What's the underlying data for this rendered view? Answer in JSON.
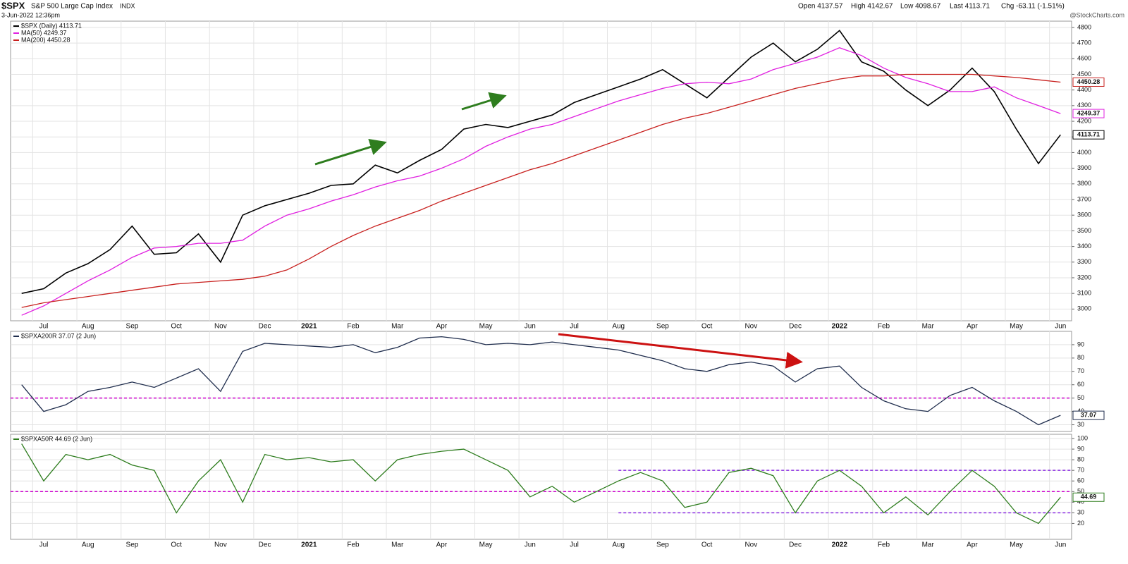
{
  "header": {
    "symbol": "$SPX",
    "name": "S&P 500 Large Cap Index",
    "exchange": "INDX",
    "timestamp": "3-Jun-2022 12:36pm",
    "open": "Open 4137.57",
    "high": "High 4142.67",
    "low": "Low 4098.67",
    "last": "Last 4113.71",
    "change": "Chg -63.11 (-1.51%)",
    "source": "@StockCharts.com"
  },
  "chart_data": [
    {
      "type": "line",
      "categories": [
        null,
        "Jul",
        null,
        "Aug",
        null,
        "Sep",
        null,
        "Oct",
        null,
        "Nov",
        null,
        "Dec",
        null,
        "2021",
        null,
        "Feb",
        null,
        "Mar",
        null,
        "Apr",
        null,
        "May",
        null,
        "Jun",
        null,
        "Jul",
        null,
        "Aug",
        null,
        "Sep",
        null,
        "Oct",
        null,
        "Nov",
        null,
        "Dec",
        null,
        "2022",
        null,
        "Feb",
        null,
        "Mar",
        null,
        "Apr",
        null,
        "May",
        null,
        "Jun"
      ],
      "series": [
        {
          "name": "$SPX (Daily) 4113.71",
          "color": "#000000",
          "values": [
            3100,
            3130,
            3230,
            3290,
            3380,
            3530,
            3350,
            3360,
            3480,
            3300,
            3600,
            3660,
            3700,
            3740,
            3790,
            3800,
            3920,
            3870,
            3950,
            4020,
            4150,
            4180,
            4160,
            4200,
            4240,
            4320,
            4370,
            4420,
            4470,
            4530,
            4440,
            4350,
            4480,
            4610,
            4700,
            4580,
            4660,
            4780,
            4580,
            4520,
            4400,
            4300,
            4400,
            4540,
            4390,
            4150,
            3930,
            4113.71
          ]
        },
        {
          "name": "MA(50) 4249.37",
          "color": "#e020e0",
          "values": [
            2960,
            3020,
            3100,
            3180,
            3250,
            3330,
            3390,
            3400,
            3420,
            3420,
            3440,
            3530,
            3600,
            3640,
            3690,
            3730,
            3780,
            3820,
            3850,
            3900,
            3960,
            4040,
            4100,
            4150,
            4180,
            4230,
            4280,
            4330,
            4370,
            4410,
            4440,
            4450,
            4440,
            4470,
            4530,
            4570,
            4610,
            4670,
            4620,
            4540,
            4480,
            4440,
            4390,
            4390,
            4420,
            4350,
            4300,
            4249.37
          ]
        },
        {
          "name": "MA(200) 4450.28",
          "color": "#c8201e",
          "values": [
            3010,
            3040,
            3060,
            3080,
            3100,
            3120,
            3140,
            3160,
            3170,
            3180,
            3190,
            3210,
            3250,
            3320,
            3400,
            3470,
            3530,
            3580,
            3630,
            3690,
            3740,
            3790,
            3840,
            3890,
            3930,
            3980,
            4030,
            4080,
            4130,
            4180,
            4220,
            4250,
            4290,
            4330,
            4370,
            4410,
            4440,
            4470,
            4490,
            4490,
            4500,
            4500,
            4500,
            4500,
            4490,
            4480,
            4465,
            4450.28
          ]
        }
      ],
      "ylim": [
        2925,
        4840
      ],
      "yticks": [
        3000,
        3100,
        3200,
        3300,
        3400,
        3500,
        3600,
        3700,
        3800,
        3900,
        4000,
        4100,
        4200,
        4300,
        4400,
        4500,
        4600,
        4700,
        4800
      ],
      "grid": true
    },
    {
      "type": "line",
      "series": [
        {
          "name": "$SPXA200R 37.07 (2 Jun)",
          "color": "#1f2d4d",
          "values": [
            60,
            40,
            45,
            55,
            58,
            62,
            58,
            65,
            72,
            55,
            85,
            91,
            90,
            89,
            88,
            90,
            84,
            88,
            95,
            96,
            94,
            90,
            91,
            90,
            92,
            90,
            88,
            86,
            82,
            78,
            72,
            70,
            75,
            77,
            74,
            62,
            72,
            74,
            58,
            48,
            42,
            40,
            52,
            58,
            48,
            40,
            30,
            37.07
          ]
        }
      ],
      "hlines": [
        {
          "value": 50,
          "color": "#cc00cc"
        }
      ],
      "ylim": [
        25,
        100
      ],
      "yticks": [
        30,
        40,
        50,
        60,
        70,
        80,
        90
      ],
      "grid": true
    },
    {
      "type": "line",
      "categories": [
        null,
        "Jul",
        null,
        "Aug",
        null,
        "Sep",
        null,
        "Oct",
        null,
        "Nov",
        null,
        "Dec",
        null,
        "2021",
        null,
        "Feb",
        null,
        "Mar",
        null,
        "Apr",
        null,
        "May",
        null,
        "Jun",
        null,
        "Jul",
        null,
        "Aug",
        null,
        "Sep",
        null,
        "Oct",
        null,
        "Nov",
        null,
        "Dec",
        null,
        "2022",
        null,
        "Feb",
        null,
        "Mar",
        null,
        "Apr",
        null,
        "May",
        null,
        "Jun"
      ],
      "series": [
        {
          "name": "$SPXA50R 44.69 (2 Jun)",
          "color": "#2e7d1e",
          "values": [
            95,
            60,
            85,
            80,
            85,
            75,
            70,
            30,
            60,
            80,
            40,
            85,
            80,
            82,
            78,
            80,
            60,
            80,
            85,
            88,
            90,
            80,
            70,
            45,
            55,
            40,
            50,
            60,
            68,
            60,
            35,
            40,
            68,
            72,
            65,
            30,
            60,
            70,
            55,
            30,
            45,
            28,
            50,
            70,
            55,
            30,
            20,
            44.69
          ]
        }
      ],
      "hlines": [
        {
          "value": 50,
          "color": "#cc00cc"
        },
        {
          "value": 70,
          "color": "#8a2be2",
          "start": 27
        },
        {
          "value": 30,
          "color": "#8a2be2",
          "start": 27
        }
      ],
      "ylim": [
        5,
        104
      ],
      "yticks": [
        20,
        30,
        40,
        50,
        60,
        70,
        80,
        90,
        100
      ],
      "grid": true
    }
  ]
}
